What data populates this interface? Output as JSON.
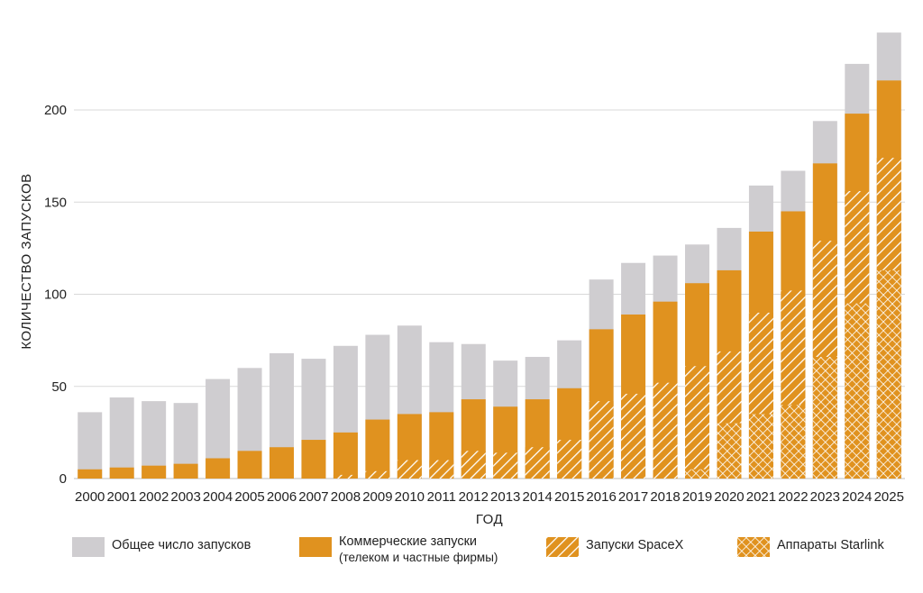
{
  "colors": {
    "total": "#cfcdd0",
    "commercial": "#e0921f",
    "grid": "#d9d9d9",
    "hatch_line": "#ffffff"
  },
  "legend": {
    "total": "Общее число запусков",
    "commercial": "Коммерческие запуски",
    "commercial_sub": "(телеком и частные фирмы)",
    "spacex": "Запуски SpaceX",
    "starlink": "Аппараты Starlink"
  },
  "chart_data": {
    "type": "bar",
    "title": "",
    "xlabel": "ГОД",
    "ylabel": "КОЛИЧЕСТВО ЗАПУСКОВ",
    "ylim": [
      0,
      245
    ],
    "yticks": [
      0,
      50,
      100,
      150,
      200
    ],
    "grid": true,
    "legend_position": "bottom",
    "categories": [
      "2000",
      "2001",
      "2002",
      "2003",
      "2004",
      "2005",
      "2006",
      "2007",
      "2008",
      "2009",
      "2010",
      "2011",
      "2012",
      "2013",
      "2014",
      "2015",
      "2016",
      "2017",
      "2018",
      "2019",
      "2020",
      "2021",
      "2022",
      "2023",
      "2024",
      "2025"
    ],
    "series": [
      {
        "name": "Общее число запусков",
        "key": "total",
        "values": [
          36,
          44,
          42,
          41,
          54,
          60,
          68,
          65,
          72,
          78,
          83,
          74,
          73,
          64,
          66,
          75,
          108,
          117,
          121,
          127,
          136,
          159,
          167,
          194,
          225,
          242
        ]
      },
      {
        "name": "Коммерческие запуски",
        "key": "commercial",
        "values": [
          5,
          6,
          7,
          8,
          11,
          15,
          17,
          21,
          25,
          32,
          35,
          36,
          43,
          39,
          43,
          49,
          81,
          89,
          96,
          106,
          113,
          134,
          145,
          171,
          198,
          216
        ]
      },
      {
        "name": "Запуски SpaceX",
        "key": "spacex",
        "values": [
          0,
          0,
          0,
          0,
          0,
          0,
          0,
          0,
          2,
          4,
          10,
          10,
          15,
          14,
          17,
          21,
          42,
          46,
          52,
          61,
          69,
          90,
          102,
          129,
          156,
          174
        ]
      },
      {
        "name": "Аппараты Starlink",
        "key": "starlink",
        "values": [
          0,
          0,
          0,
          0,
          0,
          0,
          0,
          0,
          0,
          0,
          0,
          0,
          0,
          0,
          0,
          0,
          0,
          0,
          0,
          5,
          30,
          35,
          40,
          66,
          95,
          113
        ]
      }
    ]
  }
}
